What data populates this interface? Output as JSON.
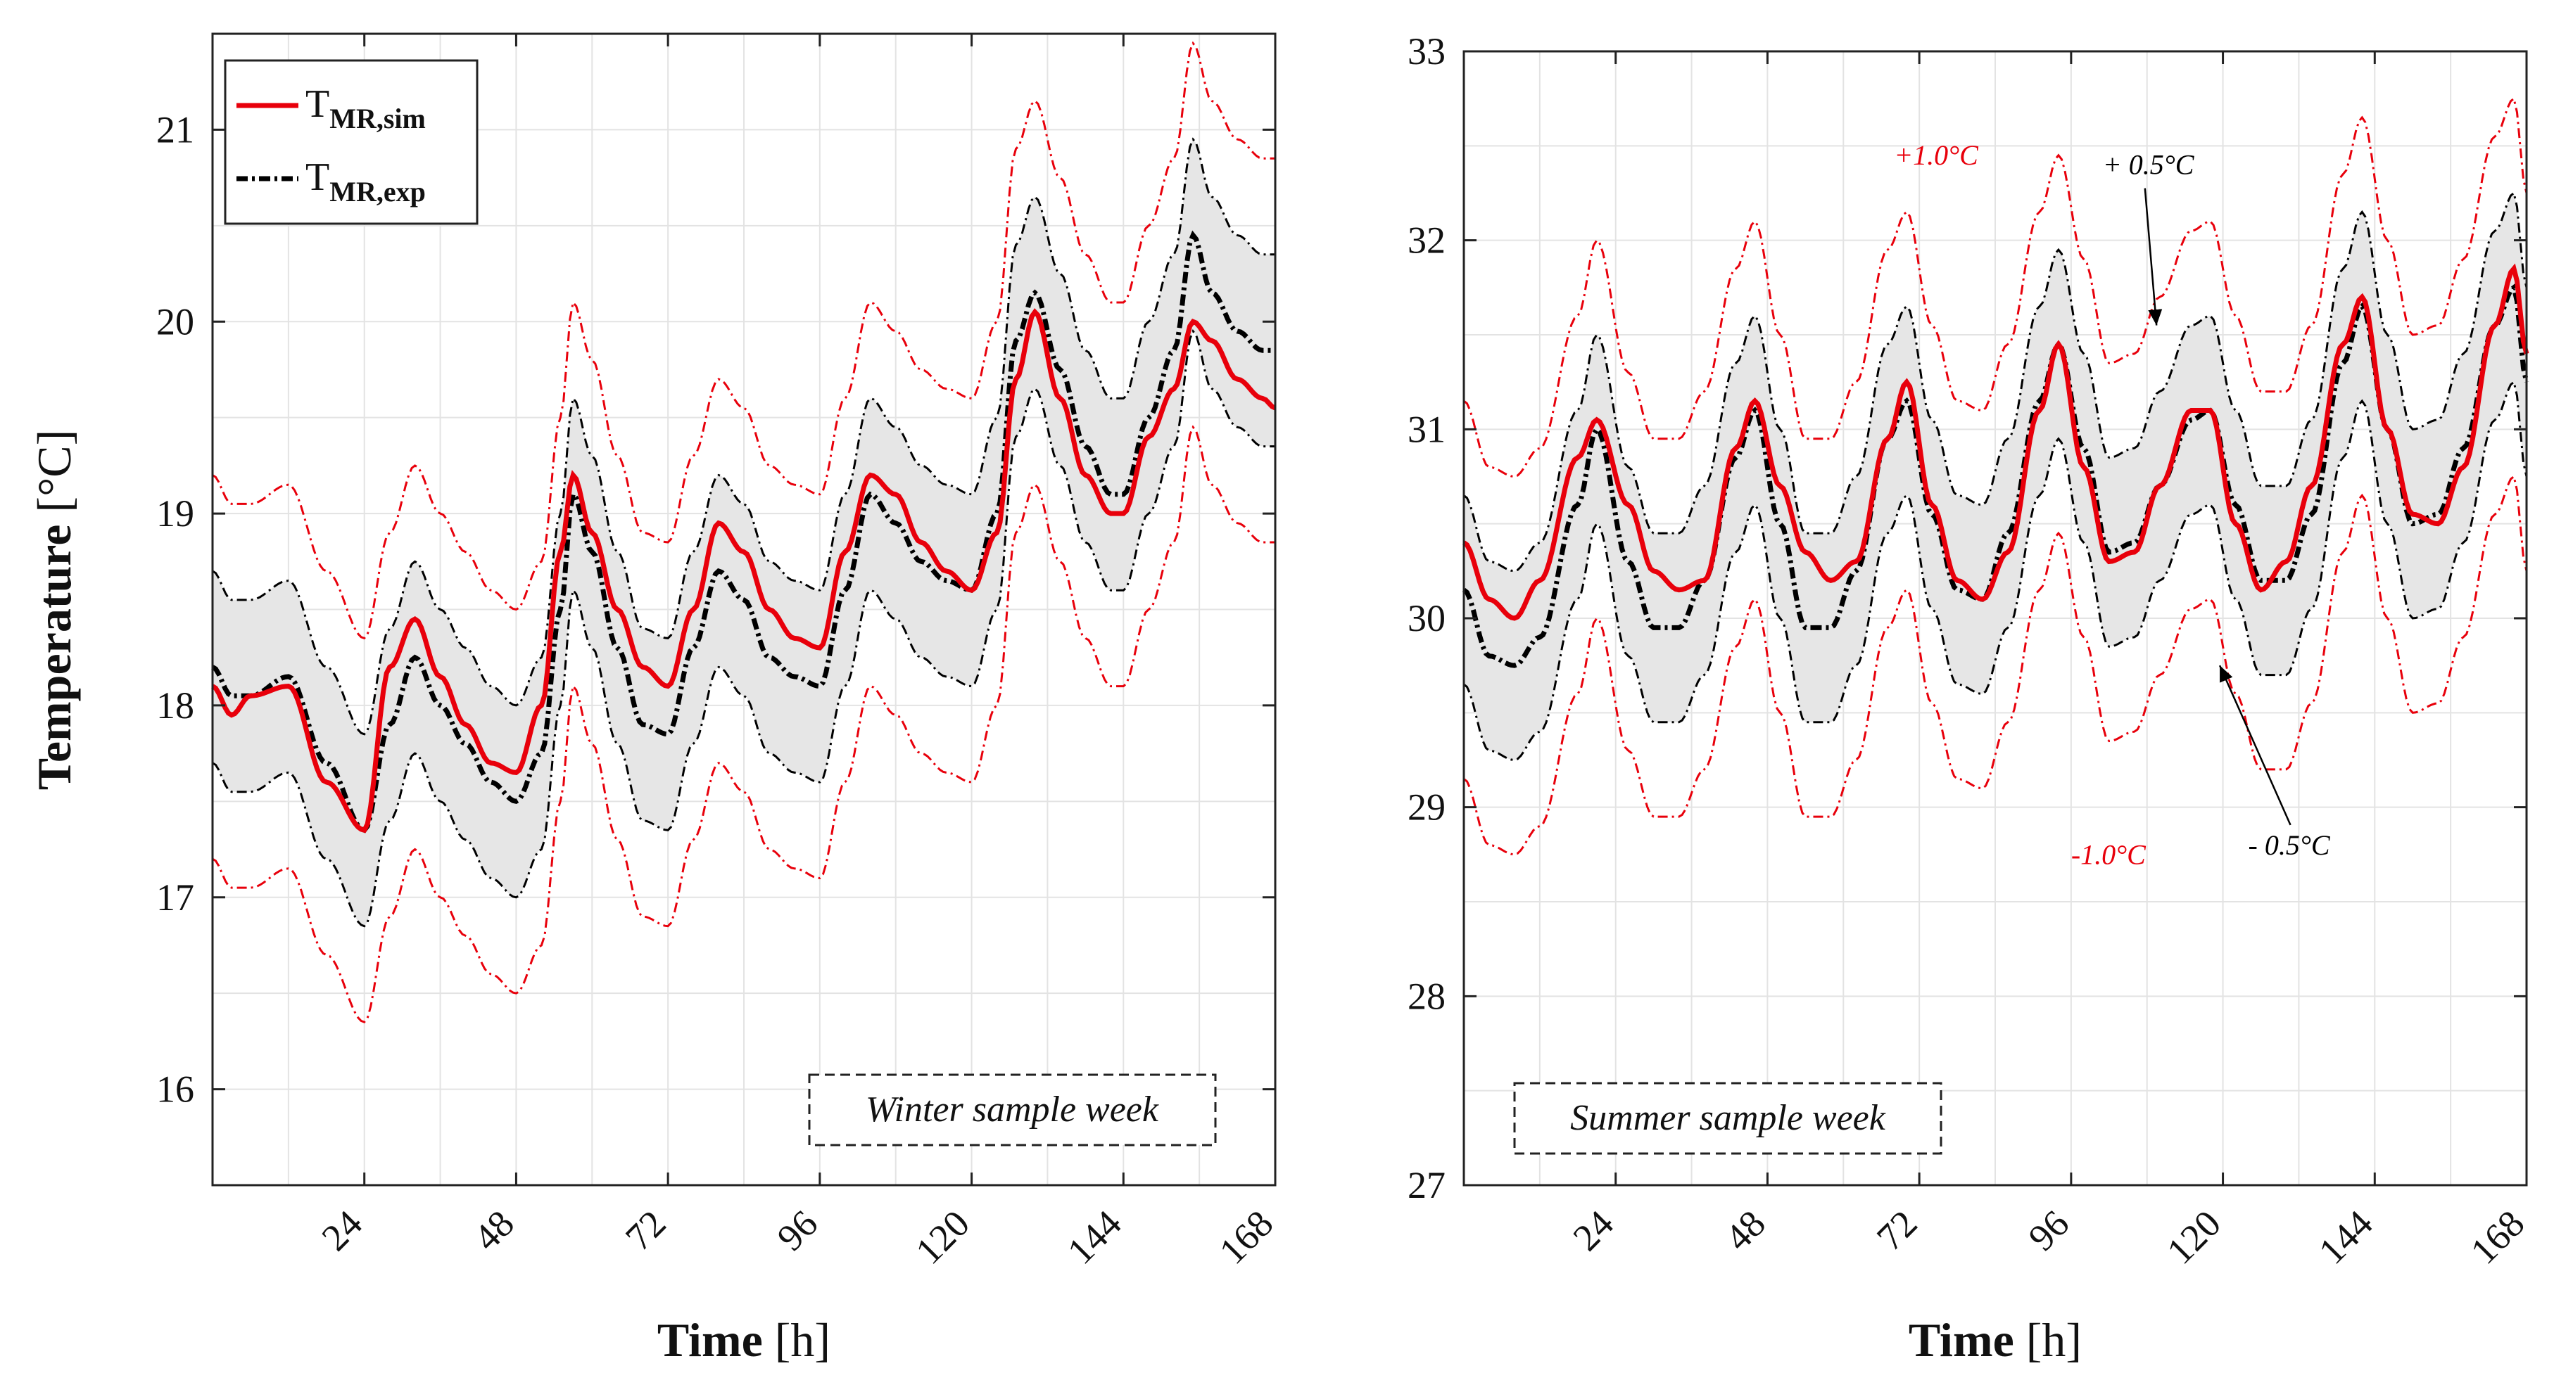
{
  "colors": {
    "sim": "#e8000b",
    "exp": "#000000",
    "band": "#e6e6e6",
    "grid": "#e3e3e3",
    "axis": "#222222"
  },
  "legend": {
    "sim_main": "T",
    "sim_sub": "MR,sim",
    "exp_main": "T",
    "exp_sub": "MR,exp"
  },
  "chart_data": [
    {
      "type": "line",
      "box_label": "Winter sample week",
      "xlabel_bold": "Time",
      "xlabel_unit": "[h]",
      "ylabel_bold": "Temperature",
      "ylabel_unit": "[°C]",
      "xlim": [
        0,
        168
      ],
      "ylim": [
        15.5,
        21.5
      ],
      "xticks": [
        24,
        48,
        72,
        96,
        120,
        144,
        168
      ],
      "xtick_labels": [
        "24",
        "48",
        "72",
        "96",
        "120",
        "144",
        "168"
      ],
      "yticks": [
        16,
        17,
        18,
        19,
        20,
        21
      ],
      "ytick_labels": [
        "16",
        "17",
        "18",
        "19",
        "20",
        "21"
      ],
      "grid": true,
      "legend_position": "top-left",
      "band": {
        "inner_offset": 0.5,
        "outer_offset": 1.0
      },
      "series": [
        {
          "name": "T_MR,sim",
          "style": "solid",
          "x": [
            0,
            3,
            6,
            12,
            18,
            24,
            28,
            32,
            36,
            40,
            44,
            48,
            52,
            55,
            57,
            60,
            64,
            68,
            72,
            76,
            80,
            84,
            88,
            92,
            96,
            100,
            104,
            108,
            112,
            116,
            120,
            124,
            127,
            130,
            134,
            138,
            142,
            144,
            148,
            152,
            155,
            158,
            162,
            166,
            168
          ],
          "y": [
            18.1,
            17.95,
            18.05,
            18.1,
            17.6,
            17.35,
            18.2,
            18.45,
            18.15,
            17.9,
            17.7,
            17.65,
            18.0,
            18.8,
            19.2,
            18.9,
            18.5,
            18.2,
            18.1,
            18.5,
            18.95,
            18.8,
            18.5,
            18.35,
            18.3,
            18.8,
            19.2,
            19.1,
            18.85,
            18.7,
            18.6,
            18.9,
            19.7,
            20.05,
            19.6,
            19.2,
            19.0,
            19.0,
            19.4,
            19.65,
            20.0,
            19.9,
            19.7,
            19.6,
            19.55
          ]
        },
        {
          "name": "T_MR,exp",
          "style": "dashdot",
          "x": [
            0,
            3,
            6,
            12,
            18,
            24,
            28,
            32,
            36,
            40,
            44,
            48,
            52,
            55,
            57,
            60,
            64,
            68,
            72,
            76,
            80,
            84,
            88,
            92,
            96,
            100,
            104,
            108,
            112,
            116,
            120,
            124,
            127,
            130,
            134,
            138,
            142,
            144,
            148,
            152,
            155,
            158,
            162,
            166,
            168
          ],
          "y": [
            18.2,
            18.05,
            18.05,
            18.15,
            17.7,
            17.35,
            17.9,
            18.25,
            18.0,
            17.8,
            17.6,
            17.5,
            17.75,
            18.5,
            19.1,
            18.8,
            18.3,
            17.9,
            17.85,
            18.3,
            18.7,
            18.55,
            18.25,
            18.15,
            18.1,
            18.6,
            19.1,
            18.95,
            18.75,
            18.65,
            18.6,
            19.0,
            19.9,
            20.15,
            19.75,
            19.35,
            19.1,
            19.1,
            19.5,
            19.85,
            20.45,
            20.15,
            19.95,
            19.85,
            19.85
          ]
        }
      ]
    },
    {
      "type": "line",
      "box_label": "Summer sample week",
      "xlabel_bold": "Time",
      "xlabel_unit": "[h]",
      "xlim": [
        0,
        168
      ],
      "ylim": [
        27,
        33
      ],
      "xticks": [
        24,
        48,
        72,
        96,
        120,
        144,
        168
      ],
      "xtick_labels": [
        "24",
        "48",
        "72",
        "96",
        "120",
        "144",
        "168"
      ],
      "yticks": [
        27,
        28,
        29,
        30,
        31,
        32,
        33
      ],
      "ytick_labels": [
        "27",
        "28",
        "29",
        "30",
        "31",
        "32",
        "33"
      ],
      "grid": true,
      "band": {
        "inner_offset": 0.5,
        "outer_offset": 1.0
      },
      "annotations": [
        {
          "text": "+1.0°C",
          "color": "#e8000b",
          "x": 68,
          "y": 32.4
        },
        {
          "text": "-1.0°C",
          "color": "#e8000b",
          "x": 96,
          "y": 28.7
        },
        {
          "text": "+ 0.5°C",
          "color": "#000000",
          "x": 101,
          "y": 32.35,
          "arrow_to": [
            109.5,
            31.55
          ]
        },
        {
          "text": "- 0.5°C",
          "color": "#000000",
          "x": 124,
          "y": 28.75,
          "arrow_to": [
            119.5,
            29.75
          ]
        }
      ],
      "series": [
        {
          "name": "T_MR,sim",
          "style": "solid",
          "x": [
            0,
            4,
            8,
            12,
            18,
            21,
            26,
            30,
            34,
            38,
            43,
            46,
            50,
            54,
            58,
            62,
            67,
            70,
            74,
            78,
            82,
            86,
            91,
            94,
            98,
            102,
            106,
            110,
            115,
            118,
            122,
            126,
            130,
            134,
            139,
            142,
            146,
            150,
            154,
            158,
            163,
            166,
            168
          ],
          "y": [
            30.4,
            30.1,
            30.0,
            30.2,
            30.85,
            31.05,
            30.6,
            30.25,
            30.15,
            30.2,
            30.9,
            31.15,
            30.7,
            30.35,
            30.2,
            30.3,
            30.95,
            31.25,
            30.6,
            30.2,
            30.1,
            30.35,
            31.1,
            31.45,
            30.8,
            30.3,
            30.35,
            30.7,
            31.1,
            31.1,
            30.5,
            30.15,
            30.3,
            30.7,
            31.45,
            31.7,
            31.0,
            30.55,
            30.5,
            30.8,
            31.55,
            31.85,
            31.4
          ]
        },
        {
          "name": "T_MR,exp",
          "style": "dashdot",
          "x": [
            0,
            4,
            8,
            12,
            18,
            21,
            26,
            30,
            34,
            38,
            43,
            46,
            50,
            54,
            58,
            62,
            67,
            70,
            74,
            78,
            82,
            86,
            91,
            94,
            98,
            102,
            106,
            110,
            115,
            118,
            122,
            126,
            130,
            134,
            139,
            142,
            146,
            150,
            154,
            158,
            163,
            166,
            168
          ],
          "y": [
            30.15,
            29.8,
            29.75,
            29.9,
            30.6,
            31.0,
            30.3,
            29.95,
            29.95,
            30.2,
            30.85,
            31.1,
            30.5,
            29.95,
            29.95,
            30.25,
            30.95,
            31.15,
            30.55,
            30.15,
            30.1,
            30.45,
            31.15,
            31.45,
            30.9,
            30.35,
            30.4,
            30.7,
            31.05,
            31.1,
            30.6,
            30.2,
            30.2,
            30.55,
            31.35,
            31.65,
            31.0,
            30.5,
            30.55,
            30.9,
            31.55,
            31.75,
            31.25
          ]
        }
      ]
    }
  ]
}
